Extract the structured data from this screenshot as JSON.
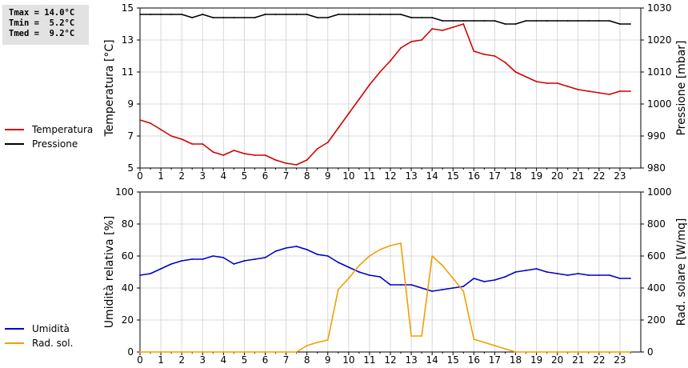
{
  "stats": {
    "tmax": "Tmax = 14.0°C",
    "tmin": "Tmin =  5.2°C",
    "tmed": "Tmed =  9.2°C"
  },
  "colors": {
    "temperature": "#d40000",
    "pressure": "#000000",
    "humidity": "#0000c8",
    "radiation": "#f0a000",
    "grid": "#d8d8d8"
  },
  "chart_data": [
    {
      "type": "line",
      "xlabel": "",
      "ylabel": "Temperatura [°C]",
      "y2label": "Pressione [mbar]",
      "xlim": [
        0,
        24
      ],
      "xticks": [
        "0",
        "1",
        "2",
        "3",
        "4",
        "5",
        "6",
        "7",
        "8",
        "9",
        "10",
        "11",
        "12",
        "13",
        "14",
        "15",
        "16",
        "17",
        "18",
        "19",
        "20",
        "21",
        "22",
        "23"
      ],
      "ylim": [
        5,
        15
      ],
      "yticks": [
        "5",
        "7",
        "9",
        "11",
        "13",
        "15"
      ],
      "y2lim": [
        980,
        1030
      ],
      "y2ticks": [
        "980",
        "990",
        "1000",
        "1010",
        "1020",
        "1030"
      ],
      "grid": true,
      "legend_position": "left",
      "series": [
        {
          "name": "Temperatura",
          "axis": "left",
          "x": [
            0,
            0.5,
            1,
            1.5,
            2,
            2.5,
            3,
            3.5,
            4,
            4.5,
            5,
            5.5,
            6,
            6.5,
            7,
            7.5,
            8,
            8.5,
            9,
            9.5,
            10,
            10.5,
            11,
            11.5,
            12,
            12.5,
            13,
            13.5,
            14,
            14.5,
            15,
            15.5,
            16,
            16.5,
            17,
            17.5,
            18,
            18.5,
            19,
            19.5,
            20,
            20.5,
            21,
            21.5,
            22,
            22.5,
            23,
            23.5
          ],
          "values": [
            8.0,
            7.8,
            7.4,
            7.0,
            6.8,
            6.5,
            6.5,
            6.0,
            5.8,
            6.1,
            5.9,
            5.8,
            5.8,
            5.5,
            5.3,
            5.2,
            5.5,
            6.2,
            6.6,
            7.5,
            8.4,
            9.3,
            10.2,
            11.0,
            11.7,
            12.5,
            12.9,
            13.0,
            13.7,
            13.6,
            13.8,
            14.0,
            12.3,
            12.1,
            12.0,
            11.6,
            11.0,
            10.7,
            10.4,
            10.3,
            10.3,
            10.1,
            9.9,
            9.8,
            9.7,
            9.6,
            9.8,
            9.8
          ]
        },
        {
          "name": "Pressione",
          "axis": "right",
          "x": [
            0,
            0.5,
            1,
            1.5,
            2,
            2.5,
            3,
            3.5,
            4,
            4.5,
            5,
            5.5,
            6,
            6.5,
            7,
            7.5,
            8,
            8.5,
            9,
            9.5,
            10,
            10.5,
            11,
            11.5,
            12,
            12.5,
            13,
            13.5,
            14,
            14.5,
            15,
            15.5,
            16,
            16.5,
            17,
            17.5,
            18,
            18.5,
            19,
            19.5,
            20,
            20.5,
            21,
            21.5,
            22,
            22.5,
            23,
            23.5
          ],
          "values": [
            1028,
            1028,
            1028,
            1028,
            1028,
            1027,
            1028,
            1027,
            1027,
            1027,
            1027,
            1027,
            1028,
            1028,
            1028,
            1028,
            1028,
            1027,
            1027,
            1028,
            1028,
            1028,
            1028,
            1028,
            1028,
            1028,
            1027,
            1027,
            1027,
            1026,
            1026,
            1026,
            1026,
            1026,
            1026,
            1025,
            1025,
            1026,
            1026,
            1026,
            1026,
            1026,
            1026,
            1026,
            1026,
            1026,
            1025,
            1025
          ]
        }
      ]
    },
    {
      "type": "line",
      "xlabel": "",
      "ylabel": "Umidità relativa [%]",
      "y2label": "Rad. solare [W/mq]",
      "xlim": [
        0,
        24
      ],
      "xticks": [
        "0",
        "1",
        "2",
        "3",
        "4",
        "5",
        "6",
        "7",
        "8",
        "9",
        "10",
        "11",
        "12",
        "13",
        "14",
        "15",
        "16",
        "17",
        "18",
        "19",
        "20",
        "21",
        "22",
        "23"
      ],
      "ylim": [
        0,
        100
      ],
      "yticks": [
        "0",
        "20",
        "40",
        "60",
        "80",
        "100"
      ],
      "y2lim": [
        0,
        1000
      ],
      "y2ticks": [
        "0",
        "200",
        "400",
        "600",
        "800",
        "1000"
      ],
      "grid": true,
      "legend_position": "left",
      "series": [
        {
          "name": "Umidità",
          "axis": "left",
          "x": [
            0,
            0.5,
            1,
            1.5,
            2,
            2.5,
            3,
            3.5,
            4,
            4.5,
            5,
            5.5,
            6,
            6.5,
            7,
            7.5,
            8,
            8.5,
            9,
            9.5,
            10,
            10.5,
            11,
            11.5,
            12,
            12.5,
            13,
            13.5,
            14,
            14.5,
            15,
            15.5,
            16,
            16.5,
            17,
            17.5,
            18,
            18.5,
            19,
            19.5,
            20,
            20.5,
            21,
            21.5,
            22,
            22.5,
            23,
            23.5
          ],
          "values": [
            48,
            49,
            52,
            55,
            57,
            58,
            58,
            60,
            59,
            55,
            57,
            58,
            59,
            63,
            65,
            66,
            64,
            61,
            60,
            56,
            53,
            50,
            48,
            47,
            42,
            42,
            42,
            40,
            38,
            39,
            40,
            41,
            46,
            44,
            45,
            47,
            50,
            51,
            52,
            50,
            49,
            48,
            49,
            48,
            48,
            48,
            46,
            46
          ]
        },
        {
          "name": "Rad. sol.",
          "axis": "right",
          "x": [
            0,
            0.5,
            1,
            1.5,
            2,
            2.5,
            3,
            3.5,
            4,
            4.5,
            5,
            5.5,
            6,
            6.5,
            7,
            7.5,
            8,
            8.5,
            9,
            9.5,
            10,
            10.5,
            11,
            11.5,
            12,
            12.5,
            13,
            13.5,
            14,
            14.5,
            15,
            15.5,
            16,
            16.5,
            17,
            17.5,
            18,
            18.5,
            19,
            19.5,
            20,
            20.5,
            21,
            21.5,
            22,
            22.5,
            23,
            23.5
          ],
          "values": [
            0,
            0,
            0,
            0,
            0,
            0,
            0,
            0,
            0,
            0,
            0,
            0,
            0,
            0,
            0,
            0,
            40,
            60,
            75,
            390,
            460,
            540,
            600,
            640,
            665,
            680,
            100,
            100,
            600,
            540,
            460,
            380,
            80,
            60,
            40,
            20,
            0,
            0,
            0,
            0,
            0,
            0,
            0,
            0,
            0,
            0,
            0,
            0
          ]
        }
      ]
    }
  ]
}
